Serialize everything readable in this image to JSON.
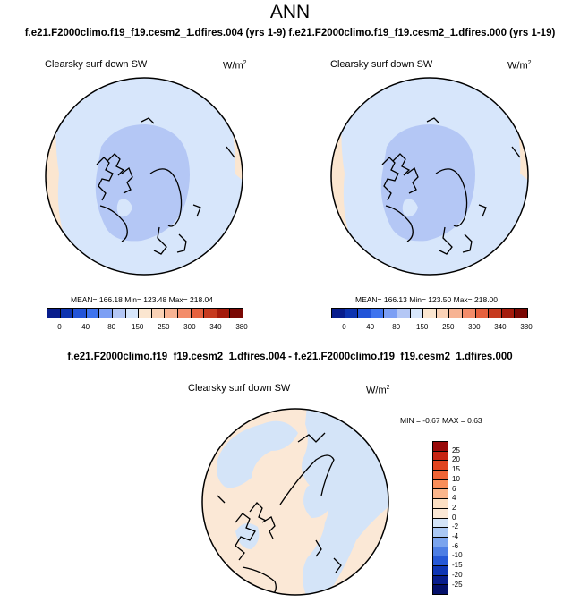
{
  "title": "ANN",
  "subtitle": "f.e21.F2000climo.f19_f19.cesm2_1.dfires.004 (yrs 1-9) f.e21.F2000climo.f19_f19.cesm2_1.dfires.000 (yrs 1-19)",
  "panels": [
    {
      "label": "Clearsky surf down SW",
      "units": "W/m",
      "units_exp": "2",
      "stats": "MEAN= 166.18  Min= 123.48  Max= 218.04"
    },
    {
      "label": "Clearsky surf down SW",
      "units": "W/m",
      "units_exp": "2",
      "stats": "MEAN= 166.13  Min= 123.50  Max= 218.00"
    }
  ],
  "colorbar": {
    "colors": [
      "#081d8c",
      "#0d34b0",
      "#2254d8",
      "#3f74ee",
      "#7c9ff4",
      "#b4c7f5",
      "#d7e6fb",
      "#fbe6d0",
      "#fad2b6",
      "#f7b393",
      "#f38c6a",
      "#e6613e",
      "#c63a1f",
      "#a41b0c",
      "#7a0804"
    ],
    "tick_labels": [
      "0",
      "40",
      "80",
      "150",
      "250",
      "300",
      "340",
      "380"
    ]
  },
  "diff": {
    "title": "f.e21.F2000climo.f19_f19.cesm2_1.dfires.004 - f.e21.F2000climo.f19_f19.cesm2_1.dfires.000",
    "label": "Clearsky surf down SW",
    "units": "W/m",
    "units_exp": "2",
    "stats": "MIN =  -0.67  MAX =   0.63",
    "colors": [
      "#990a0a",
      "#c62413",
      "#e0441f",
      "#f06435",
      "#f98e5a",
      "#fbb68c",
      "#fde0c4",
      "#fbe8d6",
      "#d4e4f8",
      "#aac8f4",
      "#7aa4ee",
      "#4d7ee4",
      "#2558d6",
      "#0e35b4",
      "#081d8c",
      "#04106a"
    ],
    "tick_labels": [
      "25",
      "20",
      "15",
      "10",
      "6",
      "4",
      "2",
      "0",
      "-2",
      "-4",
      "-6",
      "-10",
      "-15",
      "-20",
      "-25"
    ]
  }
}
